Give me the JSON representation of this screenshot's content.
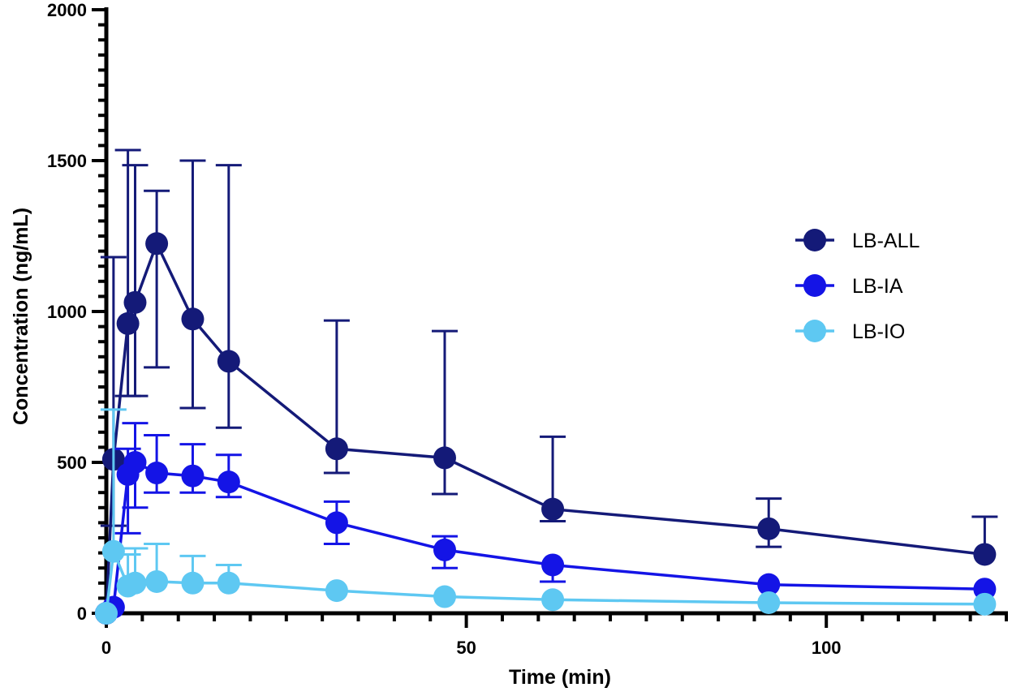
{
  "chart_data": {
    "type": "line",
    "title": "",
    "xlabel": "Time (min)",
    "ylabel": "Concentration (ng/mL)",
    "xlim": [
      0,
      125
    ],
    "ylim": [
      0,
      2000
    ],
    "xticks": [
      0,
      50,
      100
    ],
    "yticks": [
      0,
      500,
      1000,
      1500,
      2000
    ],
    "x_tick_labels": [
      "0",
      "50",
      "100"
    ],
    "y_tick_labels": [
      "0",
      "500",
      "1000",
      "1500",
      "2000"
    ],
    "grid": false,
    "legend_position": "right",
    "series": [
      {
        "name": "LB-ALL",
        "color": "#141a78",
        "x": [
          0,
          1,
          3,
          4,
          7,
          12,
          17,
          32,
          47,
          62,
          92,
          122
        ],
        "y": [
          0,
          510,
          960,
          1030,
          1225,
          975,
          835,
          545,
          515,
          345,
          280,
          195
        ],
        "err_upper": [
          null,
          1180,
          1535,
          1485,
          1400,
          1500,
          1485,
          970,
          935,
          585,
          380,
          320
        ],
        "err_lower": [
          null,
          290,
          720,
          720,
          815,
          680,
          615,
          465,
          395,
          305,
          220,
          null
        ]
      },
      {
        "name": "LB-IA",
        "color": "#1414e6",
        "x": [
          0,
          1,
          3,
          4,
          7,
          12,
          17,
          32,
          47,
          62,
          92,
          122
        ],
        "y": [
          0,
          20,
          460,
          500,
          465,
          455,
          435,
          300,
          210,
          160,
          95,
          80
        ],
        "err_upper": [
          null,
          null,
          545,
          630,
          590,
          560,
          525,
          370,
          255,
          null,
          null,
          null
        ],
        "err_lower": [
          null,
          null,
          265,
          350,
          400,
          400,
          385,
          230,
          150,
          105,
          null,
          null
        ]
      },
      {
        "name": "LB-IO",
        "color": "#5ec8f2",
        "x": [
          0,
          1,
          3,
          4,
          7,
          12,
          17,
          32,
          47,
          62,
          92,
          122
        ],
        "y": [
          0,
          205,
          90,
          100,
          105,
          100,
          100,
          75,
          55,
          45,
          35,
          30
        ],
        "err_upper": [
          null,
          675,
          195,
          215,
          230,
          190,
          160,
          null,
          null,
          null,
          null,
          null
        ],
        "err_lower": [
          null,
          null,
          null,
          null,
          null,
          null,
          null,
          null,
          null,
          null,
          null,
          null
        ]
      }
    ]
  }
}
